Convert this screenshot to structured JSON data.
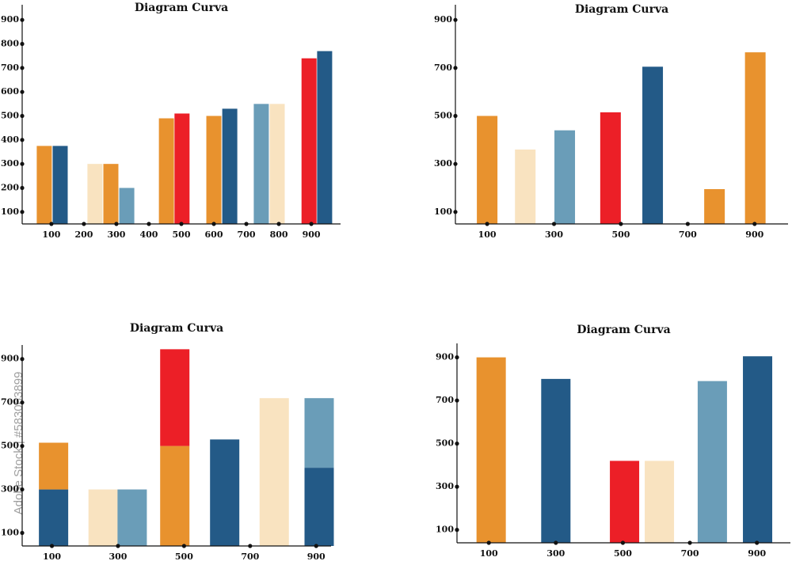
{
  "chart_data": [
    {
      "type": "bar",
      "title": "Diagram Curva",
      "xlim": [
        10,
        990
      ],
      "xticks": [
        100,
        200,
        300,
        400,
        500,
        600,
        700,
        800,
        900
      ],
      "ylim": [
        50,
        950
      ],
      "yticks": [
        100,
        200,
        300,
        400,
        500,
        600,
        700,
        800,
        900
      ],
      "bars": [
        {
          "x": 78,
          "values": [
            375
          ],
          "colors": [
            "#e8922e"
          ]
        },
        {
          "x": 127,
          "values": [
            375
          ],
          "colors": [
            "#235a87"
          ]
        },
        {
          "x": 234,
          "values": [
            300
          ],
          "colors": [
            "#f9e3c0"
          ]
        },
        {
          "x": 283,
          "values": [
            300
          ],
          "colors": [
            "#e8922e"
          ]
        },
        {
          "x": 332,
          "values": [
            200
          ],
          "colors": [
            "#6a9db8"
          ]
        },
        {
          "x": 454,
          "values": [
            490
          ],
          "colors": [
            "#e8922e"
          ]
        },
        {
          "x": 502,
          "values": [
            510
          ],
          "colors": [
            "#ec1f27"
          ]
        },
        {
          "x": 600,
          "values": [
            500
          ],
          "colors": [
            "#e8922e"
          ]
        },
        {
          "x": 649,
          "values": [
            530
          ],
          "colors": [
            "#235a87"
          ]
        },
        {
          "x": 746,
          "values": [
            550
          ],
          "colors": [
            "#6a9db8"
          ]
        },
        {
          "x": 795,
          "values": [
            550
          ],
          "colors": [
            "#f9e3c0"
          ]
        },
        {
          "x": 893,
          "values": [
            740
          ],
          "colors": [
            "#ec1f27"
          ]
        },
        {
          "x": 941,
          "values": [
            770
          ],
          "colors": [
            "#235a87"
          ]
        }
      ]
    },
    {
      "type": "bar",
      "title": "Diagram Curva",
      "xlim": [
        5,
        1000
      ],
      "xticks": [
        100,
        300,
        500,
        700,
        900
      ],
      "ylim": [
        50,
        950
      ],
      "yticks": [
        100,
        300,
        500,
        700,
        900
      ],
      "bars": [
        {
          "x": 100,
          "values": [
            500
          ],
          "colors": [
            "#e8922e"
          ]
        },
        {
          "x": 214,
          "values": [
            360
          ],
          "colors": [
            "#f9e3c0"
          ]
        },
        {
          "x": 332,
          "values": [
            440
          ],
          "colors": [
            "#6a9db8"
          ]
        },
        {
          "x": 469,
          "values": [
            515
          ],
          "colors": [
            "#ec1f27"
          ]
        },
        {
          "x": 595,
          "values": [
            705
          ],
          "colors": [
            "#235a87"
          ]
        },
        {
          "x": 780,
          "values": [
            195
          ],
          "colors": [
            "#e8922e"
          ]
        },
        {
          "x": 902,
          "values": [
            765
          ],
          "colors": [
            "#e8922e"
          ]
        }
      ]
    },
    {
      "type": "stacked-bar",
      "title": "Diagram Curva",
      "xlim": [
        10,
        945
      ],
      "xticks": [
        100,
        300,
        500,
        700,
        900
      ],
      "ylim": [
        40,
        950
      ],
      "yticks": [
        100,
        300,
        500,
        700,
        900
      ],
      "bars": [
        {
          "x": 105,
          "values": [
            300,
            215
          ],
          "colors": [
            "#235a87",
            "#e8922e"
          ]
        },
        {
          "x": 255,
          "values": [
            300
          ],
          "colors": [
            "#f9e3c0"
          ]
        },
        {
          "x": 343,
          "values": [
            300
          ],
          "colors": [
            "#6a9db8"
          ]
        },
        {
          "x": 472,
          "values": [
            500,
            445
          ],
          "colors": [
            "#e8922e",
            "#ec1f27"
          ]
        },
        {
          "x": 623,
          "values": [
            530
          ],
          "colors": [
            "#235a87"
          ]
        },
        {
          "x": 773,
          "values": [
            720
          ],
          "colors": [
            "#f9e3c0"
          ]
        },
        {
          "x": 909,
          "values": [
            400,
            320
          ],
          "colors": [
            "#235a87",
            "#6a9db8"
          ]
        }
      ]
    },
    {
      "type": "bar",
      "title": "Diagram Curva",
      "xlim": [
        5,
        1000
      ],
      "xticks": [
        100,
        300,
        500,
        700,
        900
      ],
      "ylim": [
        40,
        950
      ],
      "yticks": [
        100,
        300,
        500,
        700,
        900
      ],
      "bars": [
        {
          "x": 107,
          "values": [
            900
          ],
          "colors": [
            "#e8922e"
          ]
        },
        {
          "x": 300,
          "values": [
            800
          ],
          "colors": [
            "#235a87"
          ]
        },
        {
          "x": 505,
          "values": [
            420
          ],
          "colors": [
            "#ec1f27"
          ]
        },
        {
          "x": 609,
          "values": [
            420
          ],
          "colors": [
            "#f9e3c0"
          ]
        },
        {
          "x": 767,
          "values": [
            790
          ],
          "colors": [
            "#6a9db8"
          ]
        },
        {
          "x": 902,
          "values": [
            905
          ],
          "colors": [
            "#235a87"
          ]
        }
      ]
    }
  ],
  "watermark": "Adobe Stock | #583063899"
}
